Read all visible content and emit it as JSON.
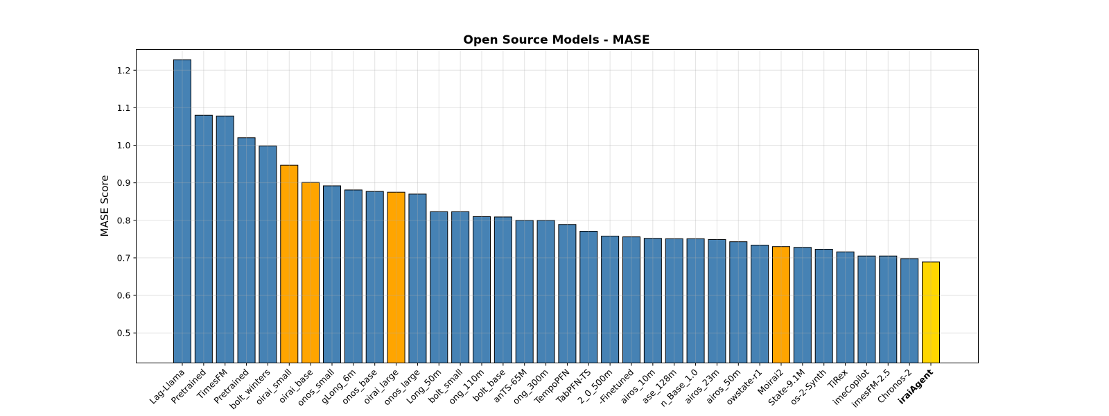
{
  "chart_data": {
    "type": "bar",
    "title": "Open Source Models - MASE",
    "xlabel": "",
    "ylabel": "MASE Score",
    "ylim": [
      0.42,
      1.255
    ],
    "yticks": [
      "0.5",
      "0.6",
      "0.7",
      "0.8",
      "0.9",
      "1.0",
      "1.1",
      "1.2"
    ],
    "grid": true,
    "colors": {
      "default": "#4682b4",
      "highlight": "#ffa500",
      "best": "#ffd700",
      "edge": "#000000"
    },
    "categories": [
      "Lag-Llama",
      "Pretrained",
      "TimesFM",
      "Pretrained",
      "bolt_winters",
      "oirai_small",
      "oirai_base",
      "onos_small",
      "gLong_6m",
      "onos_base",
      "oirai_large",
      "onos_large",
      "Long_50m",
      "bolt_small",
      "ong_110m",
      "bolt_base",
      "anTS-65M",
      "ong_300m",
      "TempoPFN",
      "TabPFN-TS",
      "2_0_500m",
      "-Finetuned",
      "airos_10m",
      "ase_128m",
      "n_Base_1.0",
      "airos_23m",
      "airos_50m",
      "owstate-r1",
      "Moirai2",
      "State-9.1M",
      "os-2-Synth",
      "TiRex",
      "imeCopilot",
      "imesFM-2.5",
      "Chronos-2",
      "iraiAgent"
    ],
    "values": [
      1.228,
      1.08,
      1.078,
      1.02,
      0.998,
      0.947,
      0.901,
      0.892,
      0.881,
      0.877,
      0.875,
      0.87,
      0.823,
      0.823,
      0.81,
      0.809,
      0.8,
      0.8,
      0.789,
      0.771,
      0.758,
      0.756,
      0.752,
      0.751,
      0.751,
      0.749,
      0.743,
      0.734,
      0.73,
      0.728,
      0.723,
      0.716,
      0.705,
      0.705,
      0.698,
      0.689
    ],
    "bar_color_roles": [
      "default",
      "default",
      "default",
      "default",
      "default",
      "highlight",
      "highlight",
      "default",
      "default",
      "default",
      "highlight",
      "default",
      "default",
      "default",
      "default",
      "default",
      "default",
      "default",
      "default",
      "default",
      "default",
      "default",
      "default",
      "default",
      "default",
      "default",
      "default",
      "default",
      "highlight",
      "default",
      "default",
      "default",
      "default",
      "default",
      "default",
      "best"
    ],
    "bold_labels": [
      "iraiAgent"
    ]
  }
}
